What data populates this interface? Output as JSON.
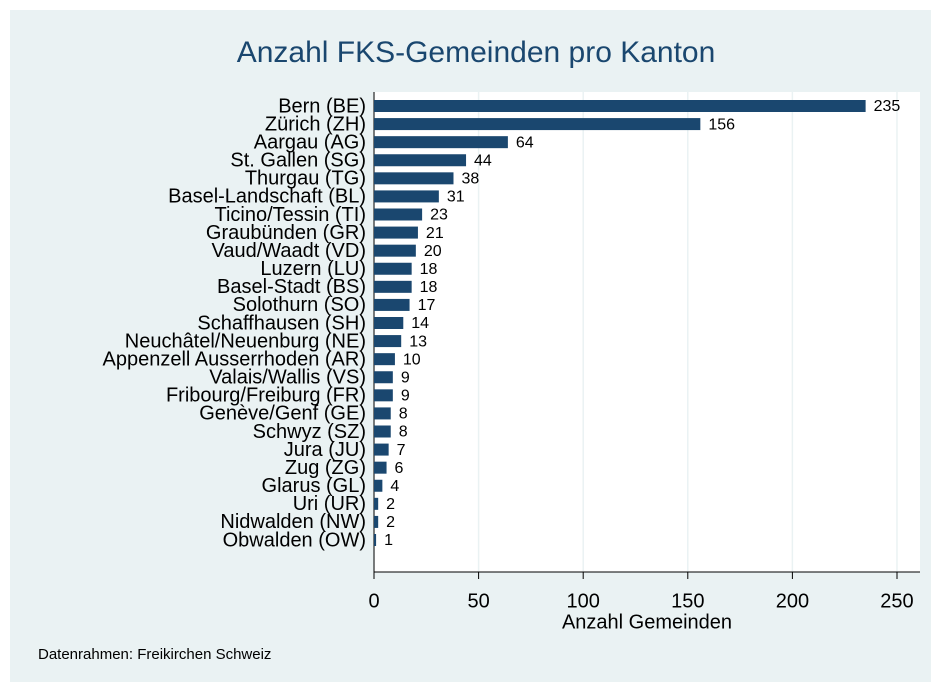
{
  "chart_data": {
    "type": "bar",
    "orientation": "horizontal",
    "title": "Anzahl FKS-Gemeinden pro Kanton",
    "xlabel": "Anzahl Gemeinden",
    "note": "Datenrahmen: Freikirchen Schweiz",
    "categories": [
      "Bern (BE)",
      "Zürich (ZH)",
      "Aargau (AG)",
      "St. Gallen (SG)",
      "Thurgau (TG)",
      "Basel-Landschaft (BL)",
      "Ticino/Tessin (TI)",
      "Graubünden (GR)",
      "Vaud/Waadt (VD)",
      "Luzern (LU)",
      "Basel-Stadt (BS)",
      "Solothurn (SO)",
      "Schaffhausen (SH)",
      "Neuchâtel/Neuenburg (NE)",
      "Appenzell Ausserrhoden (AR)",
      "Valais/Wallis (VS)",
      "Fribourg/Freiburg (FR)",
      "Genève/Genf (GE)",
      "Schwyz (SZ)",
      "Jura (JU)",
      "Zug (ZG)",
      "Glarus (GL)",
      "Uri (UR)",
      "Nidwalden (NW)",
      "Obwalden (OW)"
    ],
    "values": [
      235,
      156,
      64,
      44,
      38,
      31,
      23,
      21,
      20,
      18,
      18,
      17,
      14,
      13,
      10,
      9,
      9,
      8,
      8,
      7,
      6,
      4,
      2,
      2,
      1
    ],
    "color": "#1a476f",
    "xlim": [
      0,
      261
    ],
    "xticks": [
      0,
      50,
      100,
      150,
      200,
      250
    ],
    "grid": true
  }
}
